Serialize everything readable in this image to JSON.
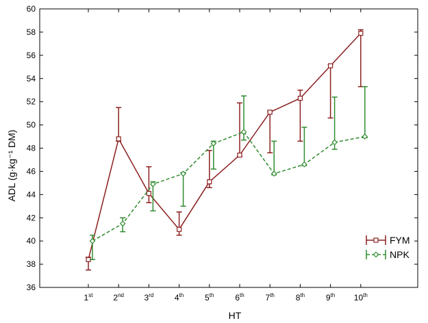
{
  "chart_data": {
    "type": "line",
    "xlabel": "HT",
    "ylabel": "ADL (g·kg⁻¹ DM)",
    "ylim": [
      36,
      60
    ],
    "yticks": [
      36,
      38,
      40,
      42,
      44,
      46,
      48,
      50,
      52,
      54,
      56,
      58,
      60
    ],
    "grid": false,
    "legend_position": "bottom-right",
    "categories": [
      {
        "base": "1",
        "sup": "st"
      },
      {
        "base": "2",
        "sup": "nd"
      },
      {
        "base": "3",
        "sup": "rd"
      },
      {
        "base": "4",
        "sup": "th"
      },
      {
        "base": "5",
        "sup": "th"
      },
      {
        "base": "6",
        "sup": "th"
      },
      {
        "base": "7",
        "sup": "th"
      },
      {
        "base": "8",
        "sup": "th"
      },
      {
        "base": "9",
        "sup": "th"
      },
      {
        "base": "10",
        "sup": "th"
      }
    ],
    "series": [
      {
        "name": "FYM",
        "color": "#8b1e1e",
        "line_style": "solid",
        "marker": "square",
        "values": [
          38.4,
          48.8,
          44.1,
          41.0,
          45.1,
          47.4,
          51.1,
          52.3,
          55.1,
          57.9
        ],
        "err_low": [
          37.5,
          48.6,
          43.3,
          40.5,
          44.6,
          47.3,
          47.6,
          48.6,
          50.6,
          53.3
        ],
        "err_high": [
          38.6,
          51.5,
          46.4,
          42.5,
          47.8,
          51.9,
          51.2,
          53.0,
          55.2,
          58.2
        ]
      },
      {
        "name": "NPK",
        "color": "#2e8b2e",
        "line_style": "dashed",
        "marker": "diamond",
        "values": [
          40.0,
          41.5,
          44.9,
          45.8,
          48.4,
          49.4,
          45.8,
          46.6,
          48.5,
          49.0
        ],
        "err_low": [
          38.4,
          40.8,
          42.6,
          43.0,
          46.2,
          48.7,
          45.7,
          46.5,
          47.9,
          48.9
        ],
        "err_high": [
          40.5,
          42.0,
          45.1,
          45.9,
          48.6,
          52.5,
          48.6,
          49.8,
          52.4,
          53.3
        ]
      }
    ]
  }
}
